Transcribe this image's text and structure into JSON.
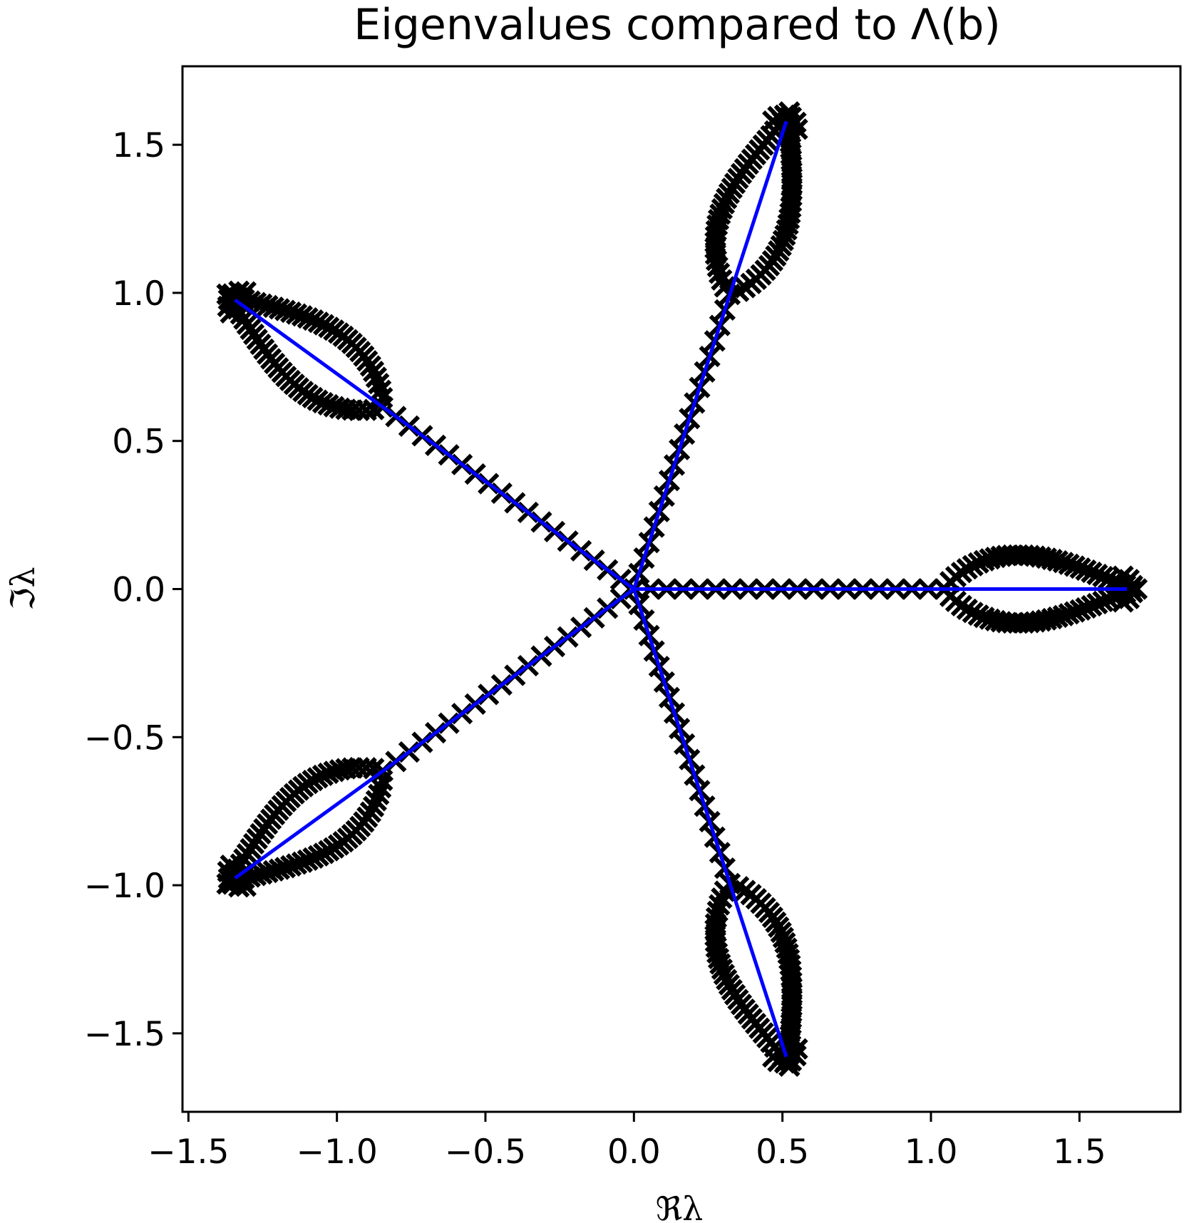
{
  "chart_data": {
    "type": "scatter",
    "title": "Eigenvalues compared to Λ(b)",
    "xlabel": "ℜλ",
    "ylabel": "ℑλ",
    "xlim": [
      -1.52,
      1.84
    ],
    "ylim": [
      -1.765,
      1.765
    ],
    "x_ticks": [
      -1.5,
      -1.0,
      -0.5,
      0.0,
      0.5,
      1.0,
      1.5
    ],
    "x_tick_labels": [
      "−1.5",
      "−1.0",
      "−0.5",
      "0.0",
      "0.5",
      "1.0",
      "1.5"
    ],
    "y_ticks": [
      1.5,
      1.0,
      0.5,
      0.0,
      -0.5,
      -1.0,
      -1.5
    ],
    "y_tick_labels": [
      "1.5",
      "1.0",
      "0.5",
      "0.0",
      "−0.5",
      "−1.0",
      "−1.5"
    ],
    "grid": false,
    "series": [
      {
        "kind": "line",
        "color": "#0000ff",
        "segments": [
          [
            [
              0,
              0
            ],
            [
              1.66,
              0
            ]
          ],
          [
            [
              0,
              0
            ],
            [
              0.513,
              1.579
            ]
          ],
          [
            [
              0,
              0
            ],
            [
              -1.343,
              0.976
            ]
          ],
          [
            [
              0,
              0
            ],
            [
              -1.343,
              -0.976
            ]
          ],
          [
            [
              0,
              0
            ],
            [
              0.513,
              -1.579
            ]
          ]
        ]
      },
      {
        "kind": "scatter",
        "marker": "x",
        "color": "#000000",
        "arms": 5,
        "tip_radius": 1.66,
        "arm_angles_deg": [
          0,
          72,
          144,
          216,
          288
        ]
      }
    ]
  }
}
